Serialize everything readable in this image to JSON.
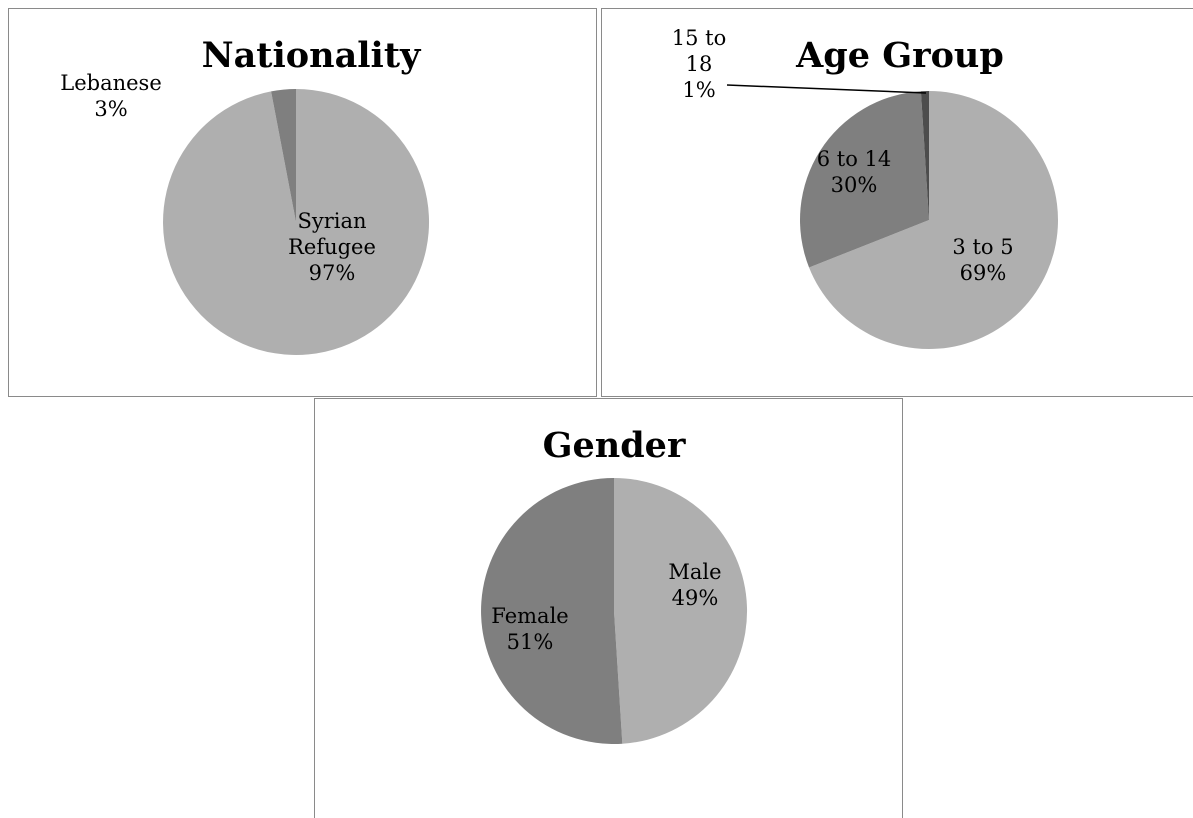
{
  "chart_data": [
    {
      "type": "pie",
      "title": "Nationality",
      "slices": [
        {
          "name": "Syrian Refugee",
          "label_lines": [
            "Syrian",
            "Refugee"
          ],
          "value": 97,
          "value_label": "97%",
          "color": "#afafaf"
        },
        {
          "name": "Lebanese",
          "label_lines": [
            "Lebanese"
          ],
          "value": 3,
          "value_label": "3%",
          "color": "#7f7f7f"
        }
      ],
      "legend": "none",
      "data_labels": "category and percentage"
    },
    {
      "type": "pie",
      "title": "Age Group",
      "slices": [
        {
          "name": "3 to 5",
          "label_lines": [
            "3 to 5"
          ],
          "value": 69,
          "value_label": "69%",
          "color": "#afafaf"
        },
        {
          "name": "6 to 14",
          "label_lines": [
            "6 to 14"
          ],
          "value": 30,
          "value_label": "30%",
          "color": "#7f7f7f"
        },
        {
          "name": "15 to 18",
          "label_lines": [
            "15 to",
            "18"
          ],
          "value": 1,
          "value_label": "1%",
          "color": "#4d4d4d"
        }
      ],
      "legend": "none",
      "data_labels": "category and percentage"
    },
    {
      "type": "pie",
      "title": "Gender",
      "slices": [
        {
          "name": "Male",
          "label_lines": [
            "Male"
          ],
          "value": 49,
          "value_label": "49%",
          "color": "#afafaf"
        },
        {
          "name": "Female",
          "label_lines": [
            "Female"
          ],
          "value": 51,
          "value_label": "51%",
          "color": "#7f7f7f"
        }
      ],
      "legend": "none",
      "data_labels": "category and percentage"
    }
  ]
}
